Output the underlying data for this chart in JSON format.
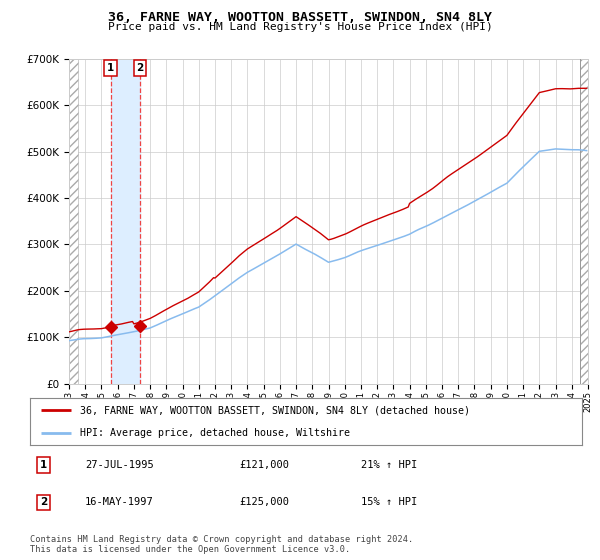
{
  "title": "36, FARNE WAY, WOOTTON BASSETT, SWINDON, SN4 8LY",
  "subtitle": "Price paid vs. HM Land Registry's House Price Index (HPI)",
  "ylim": [
    0,
    700000
  ],
  "yticks": [
    0,
    100000,
    200000,
    300000,
    400000,
    500000,
    600000,
    700000
  ],
  "ytick_labels": [
    "£0",
    "£100K",
    "£200K",
    "£300K",
    "£400K",
    "£500K",
    "£600K",
    "£700K"
  ],
  "x_start_year": 1993,
  "x_end_year": 2025,
  "purchase1_date": 1995.57,
  "purchase1_price": 121000,
  "purchase2_date": 1997.37,
  "purchase2_price": 125000,
  "red_line_color": "#cc0000",
  "blue_line_color": "#88bbee",
  "marker_color": "#cc0000",
  "vline_color": "#ee4444",
  "highlight_color": "#ddeeff",
  "legend_label_red": "36, FARNE WAY, WOOTTON BASSETT, SWINDON, SN4 8LY (detached house)",
  "legend_label_blue": "HPI: Average price, detached house, Wiltshire",
  "note1_num": "1",
  "note1_date": "27-JUL-1995",
  "note1_price": "£121,000",
  "note1_hpi": "21% ↑ HPI",
  "note2_num": "2",
  "note2_date": "16-MAY-1997",
  "note2_price": "£125,000",
  "note2_hpi": "15% ↑ HPI",
  "footer": "Contains HM Land Registry data © Crown copyright and database right 2024.\nThis data is licensed under the Open Government Licence v3.0."
}
